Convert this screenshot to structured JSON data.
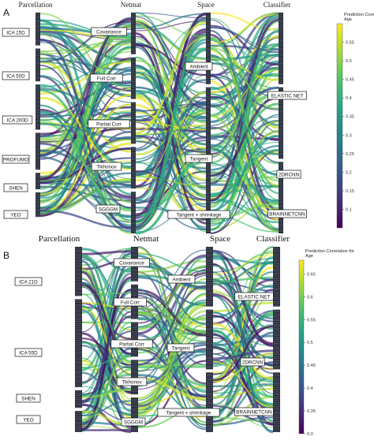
{
  "chart_data": [
    {
      "type": "parallel-categories",
      "panel_label": "A",
      "dimensions": [
        {
          "name": "Parcellation",
          "categories": [
            "ICA 15D",
            "ICA 50D",
            "ICA 200D",
            "PROFUMO",
            "SHEN",
            "YEO"
          ]
        },
        {
          "name": "Netmat",
          "categories": [
            "Covariance",
            "Full Corr",
            "Partial Corr",
            "Tikhonov",
            "SGGGM"
          ]
        },
        {
          "name": "Space",
          "categories": [
            "Ambient",
            "Tangent",
            "Tangent + shrinkage"
          ]
        },
        {
          "name": "Classifier",
          "categories": [
            "ELASTIC NET",
            "2DRCNN",
            "BRAINNETCNN"
          ]
        }
      ],
      "colorbar": {
        "title": "Prediction Correlation for Age",
        "range": [
          0.05,
          0.6
        ],
        "ticks": [
          0.1,
          0.15,
          0.2,
          0.25,
          0.3,
          0.35,
          0.4,
          0.45,
          0.5,
          0.55
        ],
        "colormap": "viridis"
      }
    },
    {
      "type": "parallel-categories",
      "panel_label": "B",
      "dimensions": [
        {
          "name": "Parcellation",
          "categories": [
            "ICA 21D",
            "ICA 55D",
            "SHEN",
            "YEO"
          ]
        },
        {
          "name": "Netmat",
          "categories": [
            "Covariance",
            "Full Corr",
            "Partial Corr",
            "Tikhonov",
            "SGGGM"
          ]
        },
        {
          "name": "Space",
          "categories": [
            "Ambient",
            "Tangent",
            "Tangent + shrinkage"
          ]
        },
        {
          "name": "Classifier",
          "categories": [
            "ELASTIC NET",
            "2DRCNN",
            "BRAINNETCNN"
          ]
        }
      ],
      "colorbar": {
        "title": "Prediction Correlation for Age",
        "range": [
          0.3,
          0.68
        ],
        "ticks": [
          0.3,
          0.35,
          0.4,
          0.45,
          0.5,
          0.55,
          0.6,
          0.65
        ],
        "colormap": "viridis"
      }
    }
  ]
}
